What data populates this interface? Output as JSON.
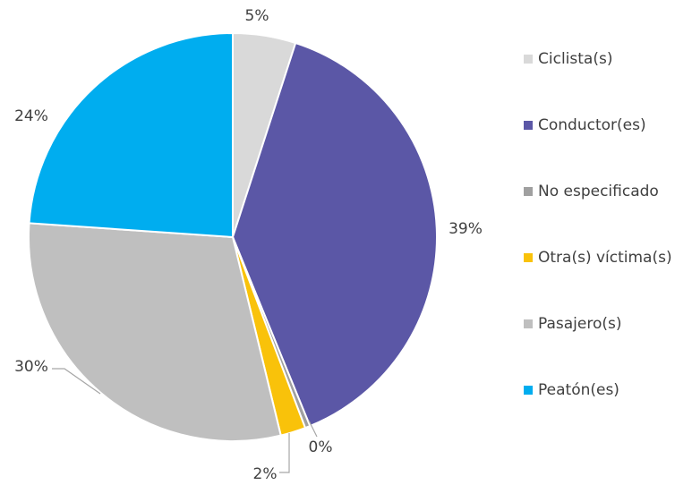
{
  "chart_data": {
    "type": "pie",
    "categories": [
      "Ciclista(s)",
      "Conductor(es)",
      "No especificado",
      "Otra(s) víctima(s)",
      "Pasajero(s)",
      "Peatón(es)"
    ],
    "values": [
      5,
      39,
      0.4,
      2,
      30,
      24
    ],
    "value_labels": [
      "5%",
      "39%",
      "0%",
      "2%",
      "30%",
      "24%"
    ],
    "colors": [
      "#d9d9d9",
      "#5b57a6",
      "#a0a0a0",
      "#f9c20a",
      "#bfbfbf",
      "#00adef"
    ],
    "legend": "right"
  }
}
